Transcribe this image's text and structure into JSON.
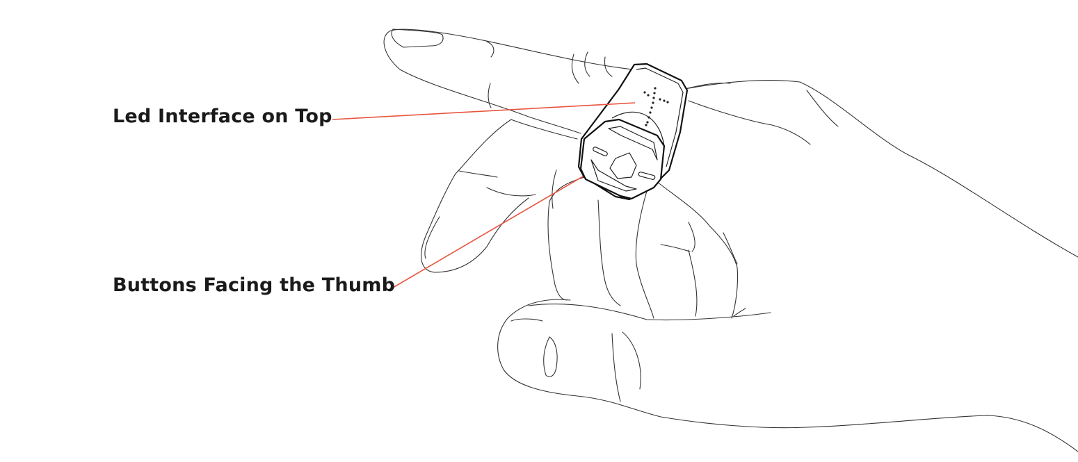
{
  "annotations": [
    {
      "id": "led",
      "text": "Led Interface on Top"
    },
    {
      "id": "buttons",
      "text": "Buttons Facing the Thumb"
    }
  ],
  "colors": {
    "leader_line": "#e8553f",
    "outline": "#333333",
    "text": "#1a1a1a"
  },
  "illustration": {
    "subject": "hand-wearing-smart-ring",
    "icons": [
      "hand-outline",
      "ring-device",
      "led-cross-icon",
      "button-hexagon-icon"
    ]
  }
}
